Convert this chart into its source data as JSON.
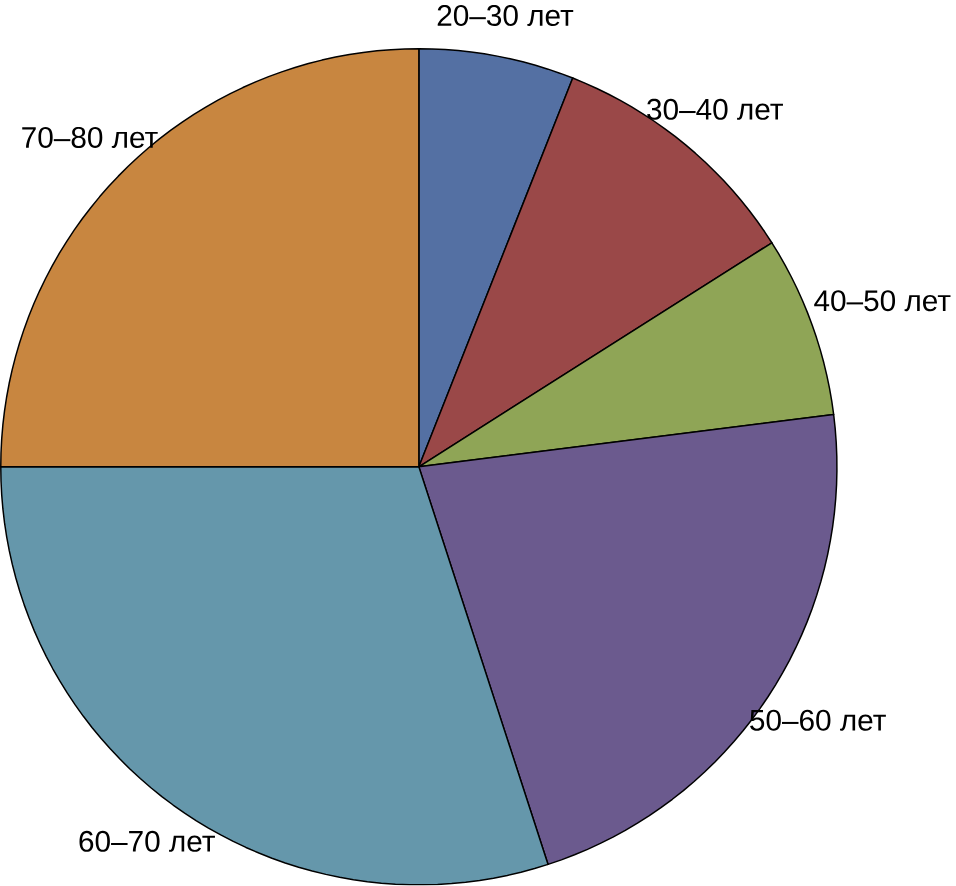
{
  "chart_data": {
    "type": "pie",
    "categories": [
      "20–30 лет",
      "30–40 лет",
      "40–50 лет",
      "50–60 лет",
      "60–70 лет",
      "70–80 лет"
    ],
    "values": [
      6,
      10,
      7,
      22,
      30,
      25
    ],
    "colors": [
      "#5470a3",
      "#9a4848",
      "#8fa556",
      "#6b5a8e",
      "#6597ab",
      "#c88640"
    ]
  }
}
